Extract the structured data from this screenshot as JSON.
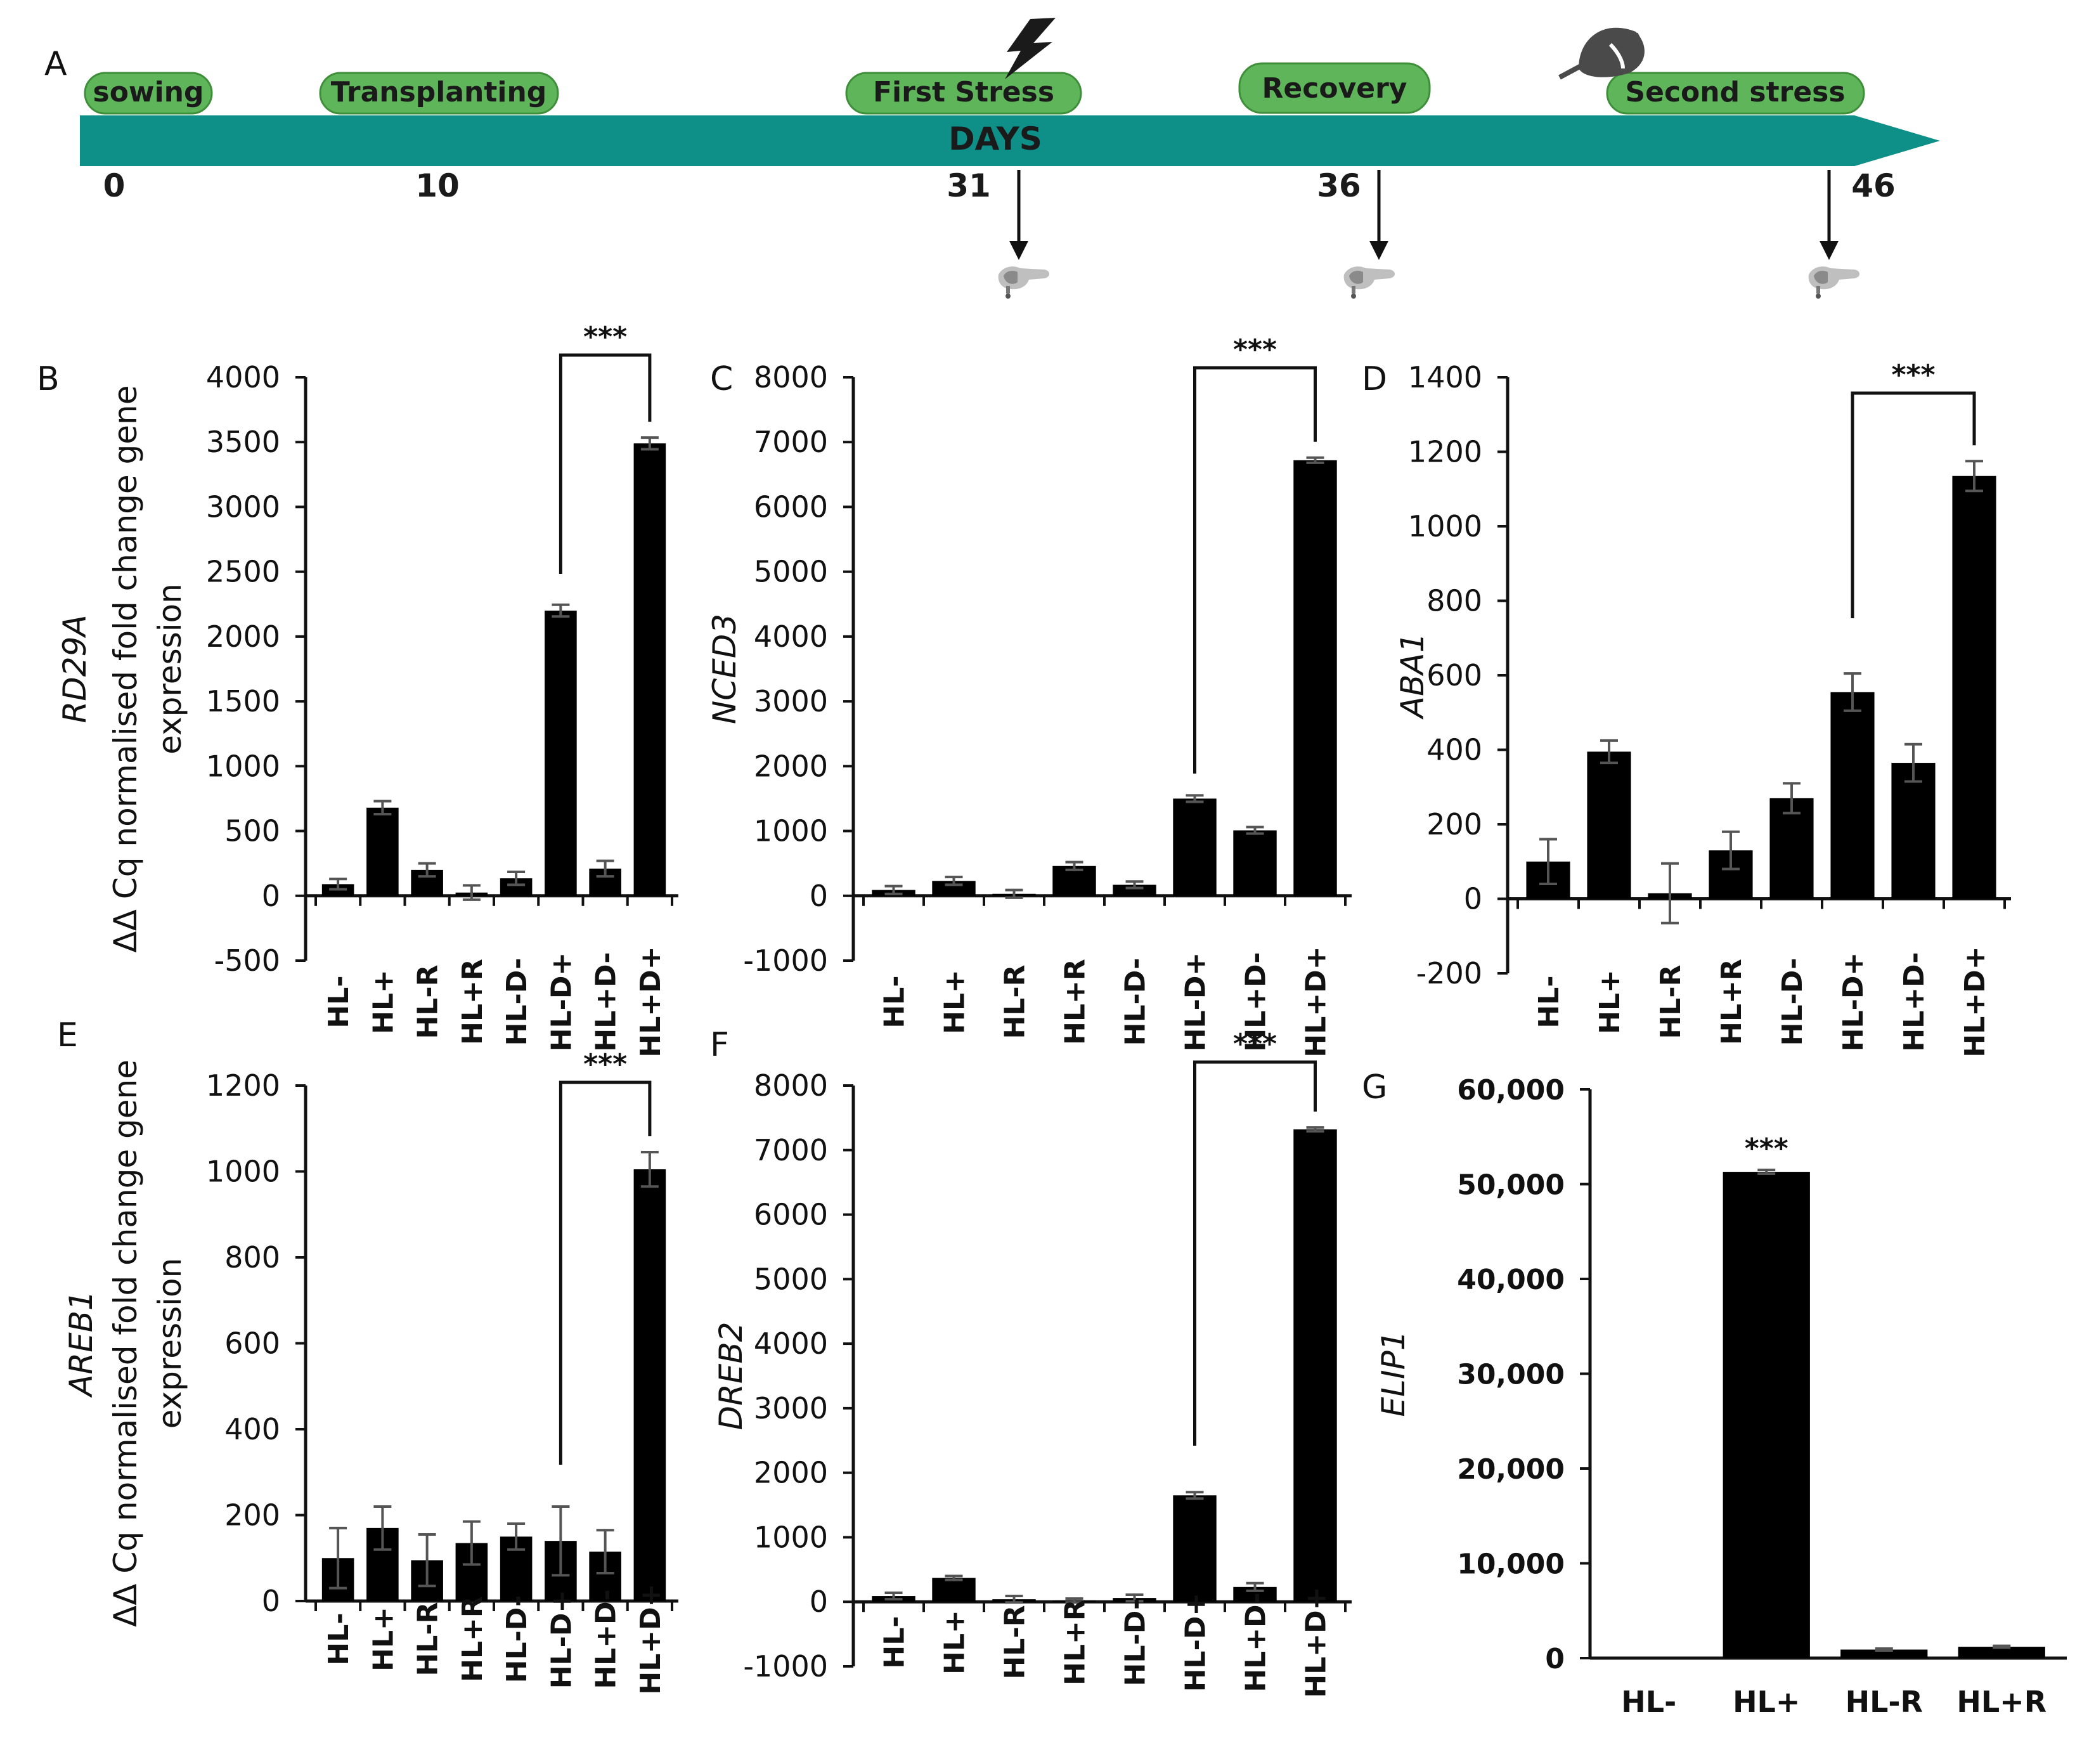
{
  "timeline": {
    "panel_letter": "A",
    "axis_label": "DAYS",
    "colors": {
      "bar": "#0e8f88",
      "pill": "#5fb65a",
      "pill_stroke": "#3e8e3a"
    },
    "stages": [
      {
        "label": "sowing",
        "day": 0
      },
      {
        "label": "Transplanting",
        "day": 10
      },
      {
        "label": "First Stress",
        "day": 31
      },
      {
        "label": "Recovery",
        "day": 36
      },
      {
        "label": "Second stress",
        "day": 46
      }
    ],
    "days": [
      "0",
      "10",
      "31",
      "36",
      "46"
    ],
    "sampling_days": [
      "31",
      "36",
      "46"
    ],
    "icons": [
      "lightning-icon",
      "no-rain-icon",
      "hand-sampling-icon"
    ]
  },
  "shared": {
    "ylabel": "ΔΔ Cq normalised fold change gene expression",
    "significance": "***"
  },
  "chart_data": [
    {
      "panel": "B",
      "type": "bar",
      "gene": "RD29A",
      "categories": [
        "HL-",
        "HL+",
        "HL-R",
        "HL+R",
        "HL-D-",
        "HL-D+",
        "HL+D-",
        "HL+D+"
      ],
      "values": [
        90,
        680,
        200,
        25,
        135,
        2200,
        210,
        3490
      ],
      "errors": [
        40,
        50,
        50,
        55,
        50,
        45,
        60,
        45
      ],
      "ylim": [
        -500,
        4000
      ],
      "yticks": [
        "-500",
        "0",
        "500",
        "1000",
        "1500",
        "2000",
        "2500",
        "3000",
        "3500",
        "4000"
      ],
      "show_ylabel": true,
      "bracket": [
        5,
        7
      ]
    },
    {
      "panel": "C",
      "type": "bar",
      "gene": "NCED3",
      "categories": [
        "HL-",
        "HL+",
        "HL-R",
        "HL+R",
        "HL-D-",
        "HL-D+",
        "HL+D-",
        "HL+D+"
      ],
      "values": [
        90,
        230,
        30,
        460,
        170,
        1500,
        1010,
        6720
      ],
      "errors": [
        60,
        60,
        60,
        60,
        50,
        50,
        50,
        40
      ],
      "ylim": [
        -1000,
        8000
      ],
      "yticks": [
        "-1000",
        "0",
        "1000",
        "2000",
        "3000",
        "4000",
        "5000",
        "6000",
        "7000",
        "8000"
      ],
      "show_ylabel": false,
      "bracket": [
        5,
        7
      ]
    },
    {
      "panel": "D",
      "type": "bar",
      "gene": "ABA1",
      "categories": [
        "HL-",
        "HL+",
        "HL-R",
        "HL+R",
        "HL-D-",
        "HL-D+",
        "HL+D-",
        "HL+D+"
      ],
      "values": [
        100,
        395,
        15,
        130,
        270,
        555,
        365,
        1135
      ],
      "errors": [
        60,
        30,
        80,
        50,
        40,
        50,
        50,
        40
      ],
      "ylim": [
        -200,
        1400
      ],
      "yticks": [
        "-200",
        "0",
        "200",
        "400",
        "600",
        "800",
        "1000",
        "1200",
        "1400"
      ],
      "show_ylabel": false,
      "bracket": [
        5,
        7
      ]
    },
    {
      "panel": "E",
      "type": "bar",
      "gene": "AREB1",
      "categories": [
        "HL-",
        "HL+",
        "HL-R",
        "HL+R",
        "HL-D-",
        "HL-D+",
        "HL+D-",
        "HL+D+"
      ],
      "values": [
        100,
        170,
        95,
        135,
        150,
        140,
        115,
        1005
      ],
      "errors": [
        70,
        50,
        60,
        50,
        30,
        80,
        50,
        40
      ],
      "ylim": [
        0,
        1200
      ],
      "yticks": [
        "0",
        "200",
        "400",
        "600",
        "800",
        "1000",
        "1200"
      ],
      "show_ylabel": true,
      "bracket": [
        5,
        7
      ]
    },
    {
      "panel": "F",
      "type": "bar",
      "gene": "DREB2",
      "categories": [
        "HL-",
        "HL+",
        "HL-R",
        "HL+R",
        "HL-D-",
        "HL-D+",
        "HL+D-",
        "HL+D+"
      ],
      "values": [
        90,
        370,
        40,
        20,
        60,
        1650,
        230,
        7320
      ],
      "errors": [
        50,
        30,
        50,
        30,
        50,
        50,
        60,
        30
      ],
      "ylim": [
        -1000,
        8000
      ],
      "yticks": [
        "-1000",
        "0",
        "1000",
        "2000",
        "3000",
        "4000",
        "5000",
        "6000",
        "7000",
        "8000"
      ],
      "show_ylabel": false,
      "bracket": [
        5,
        7
      ]
    },
    {
      "panel": "G",
      "type": "bar",
      "gene": "ELIP1",
      "categories": [
        "HL-",
        "HL+",
        "HL-R",
        "HL+R"
      ],
      "values": [
        0,
        51300,
        900,
        1200
      ],
      "errors": [
        0,
        200,
        100,
        100
      ],
      "ylim": [
        0,
        60000
      ],
      "yticks": [
        "0",
        "10,000",
        "20,000",
        "30,000",
        "40,000",
        "50,000",
        "60,000"
      ],
      "show_ylabel": false,
      "star_on": 1
    }
  ]
}
